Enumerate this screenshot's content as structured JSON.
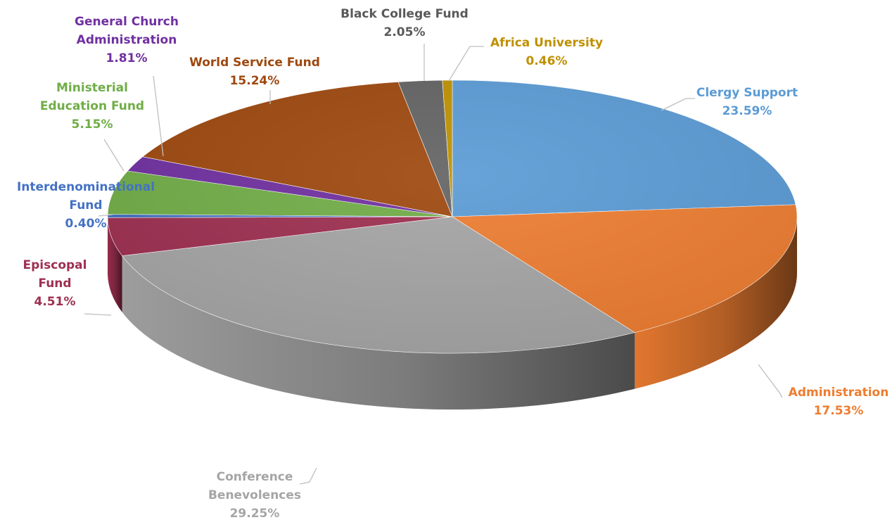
{
  "chart_data": {
    "type": "pie",
    "title": "",
    "style": "3d",
    "legend": "none",
    "slices": [
      {
        "label": [
          "Clergy Support"
        ],
        "value": 23.59,
        "value_label": "23.59%",
        "color": "#5b9bd5",
        "label_color": "#5b9bd5"
      },
      {
        "label": [
          "Administration"
        ],
        "value": 17.53,
        "value_label": "17.53%",
        "color": "#ed7d31",
        "label_color": "#ed7d31"
      },
      {
        "label": [
          "Conference",
          "Benevolences"
        ],
        "value": 29.25,
        "value_label": "29.25%",
        "color": "#a5a5a5",
        "label_color": "#a5a5a5"
      },
      {
        "label": [
          "Episcopal",
          "Fund"
        ],
        "value": 4.51,
        "value_label": "4.51%",
        "color": "#9e2f51",
        "label_color": "#9e2f51"
      },
      {
        "label": [
          "Interdenominational",
          "Fund"
        ],
        "value": 0.4,
        "value_label": "0.40%",
        "color": "#4472c4",
        "label_color": "#4472c4"
      },
      {
        "label": [
          "Ministerial",
          "Education Fund"
        ],
        "value": 5.15,
        "value_label": "5.15%",
        "color": "#70ad47",
        "label_color": "#70ad47"
      },
      {
        "label": [
          "General Church",
          "Administration"
        ],
        "value": 1.81,
        "value_label": "1.81%",
        "color": "#7030a0",
        "label_color": "#7030a0"
      },
      {
        "label": [
          "World Service Fund"
        ],
        "value": 15.24,
        "value_label": "15.24%",
        "color": "#9e480e",
        "label_color": "#9e480e"
      },
      {
        "label": [
          "Black College Fund"
        ],
        "value": 2.05,
        "value_label": "2.05%",
        "color": "#636363",
        "label_color": "#595959"
      },
      {
        "label": [
          "Africa University"
        ],
        "value": 0.46,
        "value_label": "0.46%",
        "color": "#bf9000",
        "label_color": "#bf9000"
      }
    ]
  }
}
